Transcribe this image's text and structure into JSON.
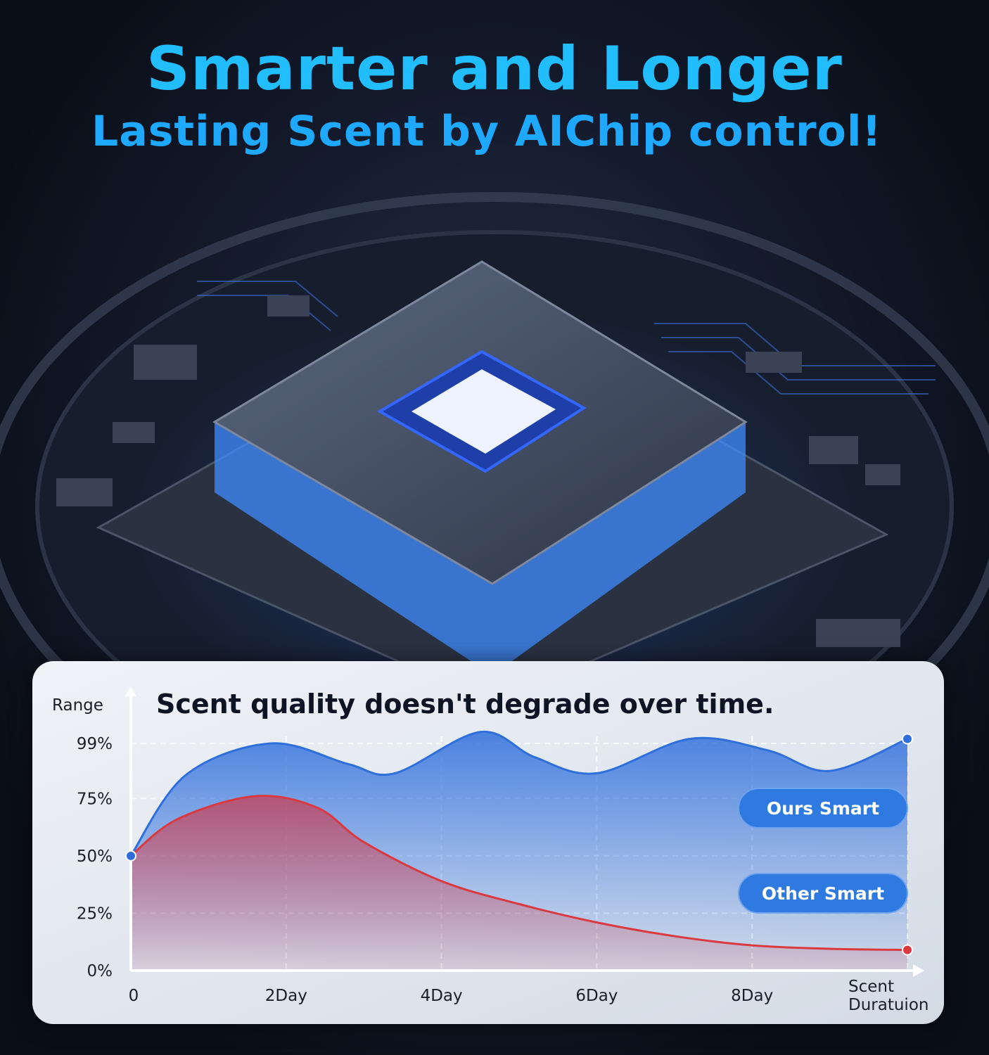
{
  "headline": {
    "line1": "Smarter and Longer",
    "line2": "Lasting Scent by AIChip control!"
  },
  "colors": {
    "headline": "#22bdfc",
    "ours_series": "#2f6fdc",
    "other_series": "#d9393f",
    "legend_pill": "#2f7ae0",
    "background": "#141b2c"
  },
  "chart_data": {
    "type": "area",
    "title": "Scent quality doesn't degrade over time.",
    "ylabel": "Range",
    "xlabel": "Scent Duratuion",
    "x_ticks": [
      {
        "value": 0,
        "label": "0"
      },
      {
        "value": 2,
        "label": "2Day"
      },
      {
        "value": 4,
        "label": "4Day"
      },
      {
        "value": 6,
        "label": "6Day"
      },
      {
        "value": 8,
        "label": "8Day"
      }
    ],
    "y_ticks": [
      {
        "value": 0,
        "label": "0%"
      },
      {
        "value": 25,
        "label": "25%"
      },
      {
        "value": 50,
        "label": "50%"
      },
      {
        "value": 75,
        "label": "75%"
      },
      {
        "value": 99,
        "label": "99%"
      }
    ],
    "xlim": [
      0,
      10
    ],
    "ylim": [
      0,
      99
    ],
    "grid": true,
    "legend_position": "right",
    "series": [
      {
        "name": "Ours Smart",
        "color": "#2f6fdc",
        "x": [
          0,
          0.7,
          1.8,
          2.8,
          3.4,
          4.5,
          5.2,
          6.0,
          7.2,
          8.2,
          9.0,
          10
        ],
        "y": [
          50,
          85,
          99,
          90,
          86,
          104,
          93,
          86,
          101,
          96,
          87,
          101
        ]
      },
      {
        "name": "Other Smart",
        "color": "#d9393f",
        "x": [
          0,
          0.6,
          1.6,
          2.4,
          3.0,
          4.0,
          5.0,
          6.0,
          7.0,
          8.0,
          9.0,
          10
        ],
        "y": [
          50,
          66,
          76,
          71,
          56,
          39,
          29,
          21,
          15,
          11,
          9.5,
          9
        ]
      }
    ]
  }
}
